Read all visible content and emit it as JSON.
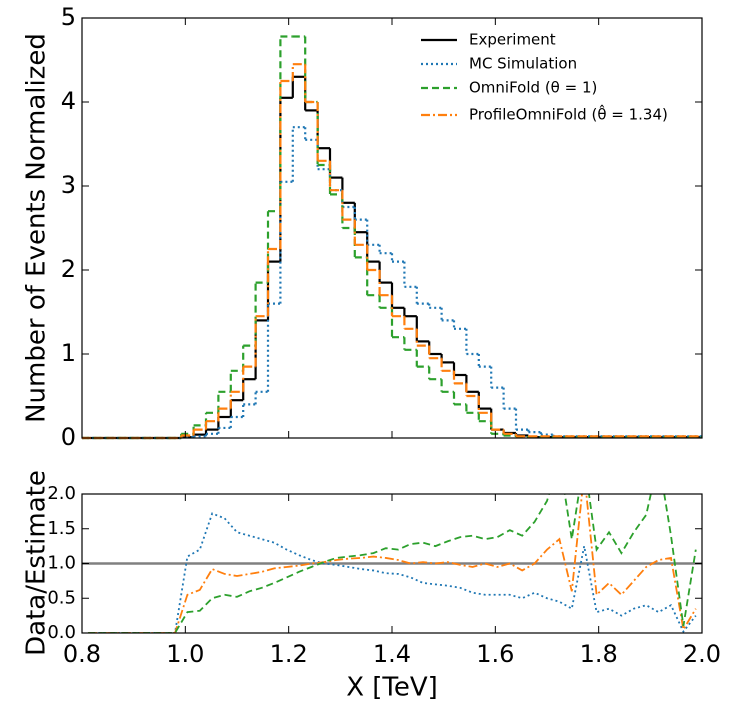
{
  "chart_data": [
    {
      "type": "histogram",
      "ylabel": "Number of Events Normalized",
      "bins": [
        0.8,
        0.824,
        0.848,
        0.872,
        0.896,
        0.92,
        0.944,
        0.968,
        0.992,
        1.016,
        1.04,
        1.064,
        1.088,
        1.112,
        1.136,
        1.16,
        1.184,
        1.208,
        1.232,
        1.256,
        1.28,
        1.304,
        1.328,
        1.352,
        1.376,
        1.4,
        1.424,
        1.448,
        1.472,
        1.496,
        1.52,
        1.544,
        1.568,
        1.592,
        1.616,
        1.64,
        1.664,
        1.688,
        1.712,
        1.736,
        1.76,
        1.784,
        1.808,
        1.832,
        1.856,
        1.88,
        1.904,
        1.928,
        1.952,
        1.976,
        2.0
      ],
      "xlim": [
        0.8,
        2.0
      ],
      "xticks": [
        0.8,
        {
          "value": 1.0,
          "label": "1.0"
        },
        1.2,
        1.4,
        1.6,
        1.8,
        {
          "value": 2.0,
          "label": "2.0"
        }
      ],
      "ylim": [
        0,
        5
      ],
      "yticks": [
        0,
        1,
        2,
        3,
        4,
        5
      ],
      "legend": "upper right",
      "series": [
        {
          "name": "Experiment",
          "color": "#000000",
          "dash": "solid",
          "values": [
            0,
            0,
            0,
            0,
            0,
            0,
            0,
            0,
            0.01,
            0.04,
            0.1,
            0.25,
            0.45,
            0.7,
            1.4,
            2.1,
            4.05,
            4.3,
            3.9,
            3.45,
            3.1,
            2.8,
            2.45,
            2.1,
            1.85,
            1.55,
            1.45,
            1.15,
            1.0,
            0.9,
            0.75,
            0.55,
            0.35,
            0.1,
            0.06,
            0.03,
            0.01,
            0.01,
            0.01,
            0.01,
            0.01,
            0.01,
            0.01,
            0.01,
            0.01,
            0.01,
            0.01,
            0.01,
            0.01,
            0.01
          ]
        },
        {
          "name": "MC Simulation",
          "color": "#1f77b4",
          "dash": "dotted",
          "values": [
            0,
            0,
            0,
            0,
            0,
            0,
            0,
            0,
            0.01,
            0.02,
            0.05,
            0.12,
            0.25,
            0.4,
            0.55,
            1.6,
            3.05,
            3.7,
            3.55,
            3.2,
            2.95,
            2.75,
            2.6,
            2.3,
            2.2,
            2.1,
            1.8,
            1.6,
            1.55,
            1.4,
            1.3,
            1.0,
            0.85,
            0.6,
            0.35,
            0.1,
            0.07,
            0.04,
            0.02,
            0.02,
            0.02,
            0.02,
            0.02,
            0.02,
            0.02,
            0.02,
            0.02,
            0.02,
            0.02,
            0.02
          ]
        },
        {
          "name": "OmniFold (θ = 1)",
          "color": "#2ca02c",
          "dash": "dashed",
          "values": [
            0,
            0,
            0,
            0,
            0,
            0,
            0,
            0,
            0.05,
            0.15,
            0.3,
            0.55,
            0.8,
            1.1,
            1.85,
            2.7,
            4.78,
            4.78,
            4.0,
            3.25,
            2.9,
            2.5,
            2.15,
            1.7,
            1.55,
            1.2,
            1.05,
            0.85,
            0.7,
            0.55,
            0.4,
            0.3,
            0.2,
            0.05,
            0.03,
            0.01,
            0.01,
            0.01,
            0.01,
            0.01,
            0.01,
            0.01,
            0.01,
            0.01,
            0.01,
            0.01,
            0.01,
            0.01,
            0.01,
            0.01
          ]
        },
        {
          "name": "ProfileOmniFold (θ̂ = 1.34)",
          "color": "#ff7f0e",
          "dash": "dashdot",
          "values": [
            0,
            0,
            0,
            0,
            0,
            0,
            0,
            0,
            0.03,
            0.1,
            0.2,
            0.35,
            0.55,
            0.85,
            1.45,
            2.25,
            4.25,
            4.45,
            4.0,
            3.3,
            2.95,
            2.6,
            2.3,
            2.0,
            1.7,
            1.45,
            1.3,
            1.1,
            0.95,
            0.8,
            0.65,
            0.5,
            0.3,
            0.1,
            0.05,
            0.02,
            0.02,
            0.02,
            0.02,
            0.02,
            0.02,
            0.02,
            0.02,
            0.02,
            0.02,
            0.02,
            0.02,
            0.02,
            0.02,
            0.02
          ]
        }
      ]
    },
    {
      "type": "line",
      "xlabel": "X [TeV]",
      "ylabel": "Data/Estimate",
      "x": [
        0.812,
        0.836,
        0.86,
        0.884,
        0.908,
        0.932,
        0.956,
        0.98,
        1.004,
        1.028,
        1.052,
        1.076,
        1.1,
        1.124,
        1.148,
        1.172,
        1.196,
        1.22,
        1.244,
        1.268,
        1.292,
        1.316,
        1.34,
        1.364,
        1.388,
        1.412,
        1.436,
        1.46,
        1.484,
        1.508,
        1.532,
        1.556,
        1.58,
        1.604,
        1.628,
        1.652,
        1.676,
        1.7,
        1.724,
        1.748,
        1.772,
        1.796,
        1.82,
        1.844,
        1.868,
        1.892,
        1.916,
        1.94,
        1.964,
        1.988
      ],
      "xlim": [
        0.8,
        2.0
      ],
      "xticks": [
        0.8,
        {
          "value": 1.0,
          "label": "1.0"
        },
        1.2,
        1.4,
        1.6,
        1.8,
        {
          "value": 2.0,
          "label": "2.0"
        }
      ],
      "ylim": [
        0,
        2
      ],
      "yticks": [
        {
          "value": 0,
          "label": "0.0"
        },
        0.5,
        {
          "value": 1,
          "label": "1.0"
        },
        1.5,
        {
          "value": 2,
          "label": "2.0"
        }
      ],
      "reference_line": 1,
      "reference_color": "#808080",
      "series": [
        {
          "color": "#1f77b4",
          "dash": "dotted",
          "values": [
            0,
            0,
            0,
            0,
            0,
            0,
            0,
            0,
            1.1,
            1.2,
            1.72,
            1.65,
            1.45,
            1.4,
            1.35,
            1.3,
            1.2,
            1.12,
            1.05,
            1.0,
            0.98,
            0.95,
            0.92,
            0.9,
            0.86,
            0.85,
            0.8,
            0.72,
            0.7,
            0.68,
            0.65,
            0.58,
            0.55,
            0.55,
            0.55,
            0.5,
            0.58,
            0.5,
            0.45,
            0.35,
            1.25,
            0.3,
            0.35,
            0.25,
            0.35,
            0.4,
            0.3,
            0.4,
            0.02,
            0.25
          ]
        },
        {
          "color": "#ff7f0e",
          "dash": "dashdot",
          "values": [
            0,
            0,
            0,
            0,
            0,
            0,
            0,
            0,
            0.55,
            0.62,
            0.92,
            0.85,
            0.82,
            0.85,
            0.88,
            0.93,
            0.95,
            0.97,
            1.0,
            1.02,
            1.05,
            1.07,
            1.08,
            1.1,
            1.08,
            1.05,
            1.0,
            1.02,
            1.0,
            1.02,
            0.98,
            0.95,
            1.0,
            0.95,
            1.0,
            0.9,
            1.0,
            1.2,
            1.35,
            0.6,
            2.3,
            0.55,
            0.72,
            0.55,
            0.75,
            0.95,
            1.05,
            1.08,
            0.05,
            0.35
          ]
        },
        {
          "color": "#2ca02c",
          "dash": "dashed",
          "values": [
            0,
            0,
            0,
            0,
            0,
            0,
            0,
            0,
            0.3,
            0.32,
            0.5,
            0.55,
            0.52,
            0.6,
            0.65,
            0.72,
            0.8,
            0.88,
            0.95,
            1.02,
            1.08,
            1.1,
            1.12,
            1.15,
            1.22,
            1.2,
            1.28,
            1.3,
            1.25,
            1.32,
            1.38,
            1.4,
            1.35,
            1.38,
            1.48,
            1.4,
            1.6,
            1.9,
            2.5,
            1.35,
            2.5,
            1.2,
            1.45,
            1.15,
            1.45,
            1.7,
            2.5,
            1.4,
            0.1,
            1.2
          ]
        }
      ]
    }
  ]
}
